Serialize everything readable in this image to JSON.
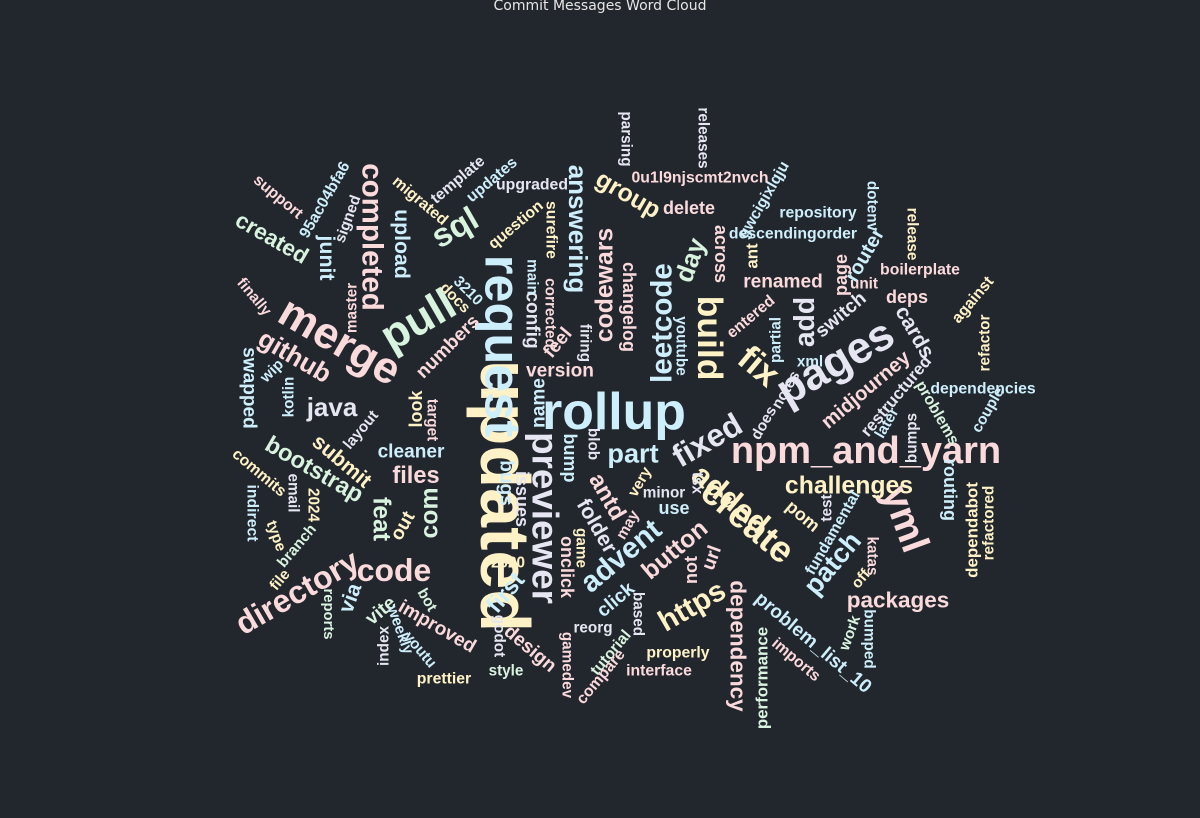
{
  "chart_data": {
    "type": "wordcloud",
    "title": "Commit Messages Word Cloud",
    "palette": [
      "#fbdadc",
      "#cdeefb",
      "#fff2c6",
      "#d8f3de",
      "#e6e6f2"
    ],
    "words": [
      {
        "text": "updated",
        "weight": 100,
        "color": "#fff2c6"
      },
      {
        "text": "rollup",
        "weight": 72,
        "color": "#cdeefb"
      },
      {
        "text": "request",
        "weight": 70,
        "color": "#cdeefb"
      },
      {
        "text": "merge",
        "weight": 60,
        "color": "#fbdadc"
      },
      {
        "text": "pull",
        "weight": 60,
        "color": "#d8f3de"
      },
      {
        "text": "pages",
        "weight": 60,
        "color": "#e6e6f2"
      },
      {
        "text": "yml",
        "weight": 52,
        "color": "#fbdadc"
      },
      {
        "text": "npm_and_yarn",
        "weight": 50,
        "color": "#fbdadc"
      },
      {
        "text": "previewer",
        "weight": 48,
        "color": "#e6e6f2"
      },
      {
        "text": "create",
        "weight": 48,
        "color": "#fff2c6"
      },
      {
        "text": "build",
        "weight": 46,
        "color": "#fff2c6"
      },
      {
        "text": "fix",
        "weight": 46,
        "color": "#fff2c6"
      },
      {
        "text": "sql",
        "weight": 42,
        "color": "#d8f3de"
      },
      {
        "text": "fixed",
        "weight": 40,
        "color": "#e6e6f2"
      },
      {
        "text": "code",
        "weight": 40,
        "color": "#fbdadc"
      },
      {
        "text": "directory",
        "weight": 40,
        "color": "#fbdadc"
      },
      {
        "text": "completed",
        "weight": 36,
        "color": "#fbdadc"
      },
      {
        "text": "added",
        "weight": 38,
        "color": "#fff2c6"
      },
      {
        "text": "https",
        "weight": 36,
        "color": "#fff2c6"
      },
      {
        "text": "advent",
        "weight": 36,
        "color": "#cdeefb"
      },
      {
        "text": "leetcode",
        "weight": 36,
        "color": "#cdeefb"
      },
      {
        "text": "add",
        "weight": 34,
        "color": "#e6e6f2"
      },
      {
        "text": "part",
        "weight": 32,
        "color": "#cdeefb"
      },
      {
        "text": "patch",
        "weight": 32,
        "color": "#cdeefb"
      },
      {
        "text": "github",
        "weight": 30,
        "color": "#fbdadc"
      },
      {
        "text": "java",
        "weight": 30,
        "color": "#e6e6f2"
      },
      {
        "text": "day",
        "weight": 30,
        "color": "#d8f3de"
      },
      {
        "text": "answering",
        "weight": 30,
        "color": "#cdeefb"
      },
      {
        "text": "codewars",
        "weight": 28,
        "color": "#fbdadc"
      },
      {
        "text": "group",
        "weight": 28,
        "color": "#fff2c6"
      },
      {
        "text": "com",
        "weight": 28,
        "color": "#d8f3de"
      },
      {
        "text": "challenges",
        "weight": 28,
        "color": "#fff2c6"
      },
      {
        "text": "feat",
        "weight": 28,
        "color": "#d8f3de"
      },
      {
        "text": "button",
        "weight": 28,
        "color": "#fbdadc"
      },
      {
        "text": "bootstrap",
        "weight": 26,
        "color": "#d8f3de"
      },
      {
        "text": "first",
        "weight": 26,
        "color": "#cdeefb"
      },
      {
        "text": "antd",
        "weight": 26,
        "color": "#fbdadc"
      },
      {
        "text": "files",
        "weight": 26,
        "color": "#fbdadc"
      },
      {
        "text": "dependency",
        "weight": 24,
        "color": "#fbdadc"
      },
      {
        "text": "created",
        "weight": 24,
        "color": "#d8f3de"
      },
      {
        "text": "packages",
        "weight": 24,
        "color": "#fbdadc"
      },
      {
        "text": "via",
        "weight": 22,
        "color": "#cdeefb"
      },
      {
        "text": "cards",
        "weight": 22,
        "color": "#e6e6f2"
      },
      {
        "text": "junit",
        "weight": 22,
        "color": "#cdeefb"
      },
      {
        "text": "upload",
        "weight": 22,
        "color": "#cdeefb"
      },
      {
        "text": "submit",
        "weight": 22,
        "color": "#fff2c6"
      },
      {
        "text": "folder",
        "weight": 22,
        "color": "#e6e6f2"
      },
      {
        "text": "midjourney",
        "weight": 20,
        "color": "#fbdadc"
      },
      {
        "text": "router",
        "weight": 20,
        "color": "#cdeefb"
      },
      {
        "text": "swapped",
        "weight": 18,
        "color": "#cdeefb"
      },
      {
        "text": "improved",
        "weight": 18,
        "color": "#fbdadc"
      },
      {
        "text": "problem_list_10",
        "weight": 18,
        "color": "#cdeefb"
      },
      {
        "text": "numbers",
        "weight": 18,
        "color": "#fbdadc"
      },
      {
        "text": "switch",
        "weight": 18,
        "color": "#e6e6f2"
      },
      {
        "text": "url",
        "weight": 18,
        "color": "#fbdadc"
      },
      {
        "text": "cleaner",
        "weight": 18,
        "color": "#cdeefb"
      },
      {
        "text": "name",
        "weight": 18,
        "color": "#cdeefb"
      },
      {
        "text": "issues",
        "weight": 16,
        "color": "#e6e6f2"
      },
      {
        "text": "bugs",
        "weight": 18,
        "color": "#cdeefb"
      },
      {
        "text": "version",
        "weight": 18,
        "color": "#fbdadc"
      },
      {
        "text": "design",
        "weight": 18,
        "color": "#fbdadc"
      },
      {
        "text": "changelog",
        "weight": 16,
        "color": "#fbdadc"
      },
      {
        "text": "renamed",
        "weight": 18,
        "color": "#fbdadc"
      },
      {
        "text": "click",
        "weight": 18,
        "color": "#cdeefb"
      },
      {
        "text": "config",
        "weight": 18,
        "color": "#e6e6f2"
      },
      {
        "text": "feel",
        "weight": 18,
        "color": "#fbdadc"
      },
      {
        "text": "across",
        "weight": 16,
        "color": "#fbdadc"
      },
      {
        "text": "deps",
        "weight": 16,
        "color": "#fbdadc"
      },
      {
        "text": "out",
        "weight": 18,
        "color": "#fff2c6"
      },
      {
        "text": "look",
        "weight": 16,
        "color": "#fff2c6"
      },
      {
        "text": "vite",
        "weight": 18,
        "color": "#d8f3de"
      },
      {
        "text": "use",
        "weight": 16,
        "color": "#cdeefb"
      },
      {
        "text": "page",
        "weight": 16,
        "color": "#fbdadc"
      },
      {
        "text": "pom",
        "weight": 16,
        "color": "#fff2c6"
      },
      {
        "text": "routing",
        "weight": 16,
        "color": "#cdeefb"
      },
      {
        "text": "onclick",
        "weight": 16,
        "color": "#fbdadc"
      },
      {
        "text": "delete",
        "weight": 16,
        "color": "#fbdadc"
      },
      {
        "text": "bump",
        "weight": 16,
        "color": "#cdeefb"
      },
      {
        "text": "restructured",
        "weight": 14,
        "color": "#e6e6f2"
      },
      {
        "text": "not",
        "weight": 16,
        "color": "#fbdadc"
      },
      {
        "text": "dependabot",
        "weight": 14,
        "color": "#fff2c6"
      },
      {
        "text": "performance",
        "weight": 14,
        "color": "#d8f3de"
      },
      {
        "text": "fundamental",
        "weight": 12,
        "color": "#cdeefb"
      },
      {
        "text": "ant",
        "weight": 14,
        "color": "#fff2c6"
      },
      {
        "text": "imports",
        "weight": 12,
        "color": "#fbdadc"
      },
      {
        "text": "tutorial",
        "weight": 12,
        "color": "#d8f3de"
      },
      {
        "text": "compare",
        "weight": 12,
        "color": "#fbdadc"
      },
      {
        "text": "problems",
        "weight": 12,
        "color": "#d8f3de"
      },
      {
        "text": "dependencies",
        "weight": 12,
        "color": "#cdeefb"
      },
      {
        "text": "repository",
        "weight": 12,
        "color": "#cdeefb"
      },
      {
        "text": "descendingorder",
        "weight": 12,
        "color": "#cdeefb"
      },
      {
        "text": "gwcigixlqju",
        "weight": 12,
        "color": "#cdeefb"
      },
      {
        "text": "0u1l9njscmt2nvch",
        "weight": 12,
        "color": "#fbdadc"
      },
      {
        "text": "upgraded",
        "weight": 12,
        "color": "#e6e6f2"
      },
      {
        "text": "commits",
        "weight": 12,
        "color": "#fff2c6"
      },
      {
        "text": "indirect",
        "weight": 12,
        "color": "#cdeefb"
      },
      {
        "text": "support",
        "weight": 12,
        "color": "#fbdadc"
      },
      {
        "text": "95ac04bfa6",
        "weight": 12,
        "color": "#cdeefb"
      },
      {
        "text": "template",
        "weight": 12,
        "color": "#e6e6f2"
      },
      {
        "text": "updates",
        "weight": 12,
        "color": "#cdeefb"
      },
      {
        "text": "migrated",
        "weight": 12,
        "color": "#fff2c6"
      },
      {
        "text": "question",
        "weight": 12,
        "color": "#fff2c6"
      },
      {
        "text": "surefire",
        "weight": 12,
        "color": "#fff2c6"
      },
      {
        "text": "boilerplate",
        "weight": 12,
        "color": "#fbdadc"
      },
      {
        "text": "refactored",
        "weight": 11,
        "color": "#fff2c6"
      },
      {
        "text": "refactor",
        "weight": 11,
        "color": "#fff2c6"
      },
      {
        "text": "against",
        "weight": 12,
        "color": "#fff2c6"
      },
      {
        "text": "entered",
        "weight": 12,
        "color": "#fbdadc"
      },
      {
        "text": "prettier",
        "weight": 12,
        "color": "#fff2c6"
      },
      {
        "text": "properly",
        "weight": 12,
        "color": "#fff2c6"
      },
      {
        "text": "interface",
        "weight": 12,
        "color": "#fbdadc"
      },
      {
        "text": "finally",
        "weight": 11,
        "color": "#fbdadc"
      },
      {
        "text": "reports",
        "weight": 10,
        "color": "#d8f3de"
      },
      {
        "text": "release",
        "weight": 11,
        "color": "#fff2c6"
      },
      {
        "text": "releases",
        "weight": 11,
        "color": "#e6e6f2"
      },
      {
        "text": "parsing",
        "weight": 11,
        "color": "#e6e6f2"
      },
      {
        "text": "corrected",
        "weight": 11,
        "color": "#fbdadc"
      },
      {
        "text": "signed",
        "weight": 11,
        "color": "#e6e6f2"
      },
      {
        "text": "gamedev",
        "weight": 11,
        "color": "#fbdadc"
      },
      {
        "text": "style",
        "weight": 11,
        "color": "#d8f3de"
      },
      {
        "text": "kotlin",
        "weight": 11,
        "color": "#cdeefb"
      },
      {
        "text": "wip",
        "weight": 11,
        "color": "#cdeefb"
      },
      {
        "text": "master",
        "weight": 11,
        "color": "#fbdadc"
      },
      {
        "text": "layout",
        "weight": 11,
        "color": "#e6e6f2"
      },
      {
        "text": "target",
        "weight": 11,
        "color": "#fbdadc"
      },
      {
        "text": "docs",
        "weight": 11,
        "color": "#fff2c6"
      },
      {
        "text": "3210",
        "weight": 11,
        "color": "#cdeefb"
      },
      {
        "text": "main",
        "weight": 11,
        "color": "#cdeefb"
      },
      {
        "text": "firing",
        "weight": 11,
        "color": "#e6e6f2"
      },
      {
        "text": "youtube",
        "weight": 11,
        "color": "#cdeefb"
      },
      {
        "text": "partial",
        "weight": 11,
        "color": "#cdeefb"
      },
      {
        "text": "xml",
        "weight": 11,
        "color": "#cdeefb"
      },
      {
        "text": "notes",
        "weight": 11,
        "color": "#e6e6f2"
      },
      {
        "text": "does",
        "weight": 11,
        "color": "#e6e6f2"
      },
      {
        "text": "later",
        "weight": 11,
        "color": "#cdeefb"
      },
      {
        "text": "bumps",
        "weight": 11,
        "color": "#e6e6f2"
      },
      {
        "text": "couple",
        "weight": 11,
        "color": "#cdeefb"
      },
      {
        "text": "unit",
        "weight": 11,
        "color": "#fbdadc"
      },
      {
        "text": "dotenv",
        "weight": 11,
        "color": "#cdeefb"
      },
      {
        "text": "blob",
        "weight": 11,
        "color": "#e6e6f2"
      },
      {
        "text": "very",
        "weight": 11,
        "color": "#fff2c6"
      },
      {
        "text": "minor",
        "weight": 11,
        "color": "#e6e6f2"
      },
      {
        "text": "tsx",
        "weight": 11,
        "color": "#e6e6f2"
      },
      {
        "text": "may",
        "weight": 11,
        "color": "#fbdadc"
      },
      {
        "text": "game",
        "weight": 11,
        "color": "#fff2c6"
      },
      {
        "text": "2020",
        "weight": 11,
        "color": "#fff2c6"
      },
      {
        "text": "godot",
        "weight": 11,
        "color": "#e6e6f2"
      },
      {
        "text": "reorg",
        "weight": 11,
        "color": "#e6e6f2"
      },
      {
        "text": "based",
        "weight": 11,
        "color": "#e6e6f2"
      },
      {
        "text": "test",
        "weight": 11,
        "color": "#e6e6f2"
      },
      {
        "text": "katas",
        "weight": 11,
        "color": "#fbdadc"
      },
      {
        "text": "off",
        "weight": 11,
        "color": "#fff2c6"
      },
      {
        "text": "work",
        "weight": 11,
        "color": "#d8f3de"
      },
      {
        "text": "bumped",
        "weight": 11,
        "color": "#cdeefb"
      },
      {
        "text": "email",
        "weight": 11,
        "color": "#e6e6f2"
      },
      {
        "text": "2024",
        "weight": 11,
        "color": "#fff2c6"
      },
      {
        "text": "type",
        "weight": 11,
        "color": "#fff2c6"
      },
      {
        "text": "branch",
        "weight": 11,
        "color": "#d8f3de"
      },
      {
        "text": "file",
        "weight": 11,
        "color": "#fff2c6"
      },
      {
        "text": "bot",
        "weight": 11,
        "color": "#d8f3de"
      },
      {
        "text": "index",
        "weight": 11,
        "color": "#e6e6f2"
      },
      {
        "text": "weekly",
        "weight": 11,
        "color": "#cdeefb"
      },
      {
        "text": "youtu",
        "weight": 11,
        "color": "#cdeefb"
      }
    ]
  }
}
